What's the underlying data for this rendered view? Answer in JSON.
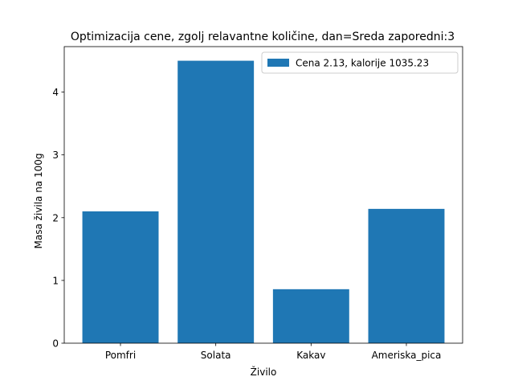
{
  "chart_data": {
    "type": "bar",
    "title": "Optimizacija cene, zgolj relavantne količine, dan=Sreda  zaporedni:3",
    "xlabel": "Živilo",
    "ylabel": "Masa živila na 100g",
    "categories": [
      "Pomfri",
      "Solata",
      "Kakav",
      "Ameriska_pica"
    ],
    "series": [
      {
        "name": "Cena 2.13, kalorije 1035.23",
        "values": [
          2.1,
          4.5,
          0.86,
          2.14
        ],
        "color": "#1f77b4"
      }
    ],
    "ylim": [
      0,
      4.725
    ],
    "yticks": [
      0,
      1,
      2,
      3,
      4
    ],
    "grid": false,
    "legend_position": "upper right"
  }
}
